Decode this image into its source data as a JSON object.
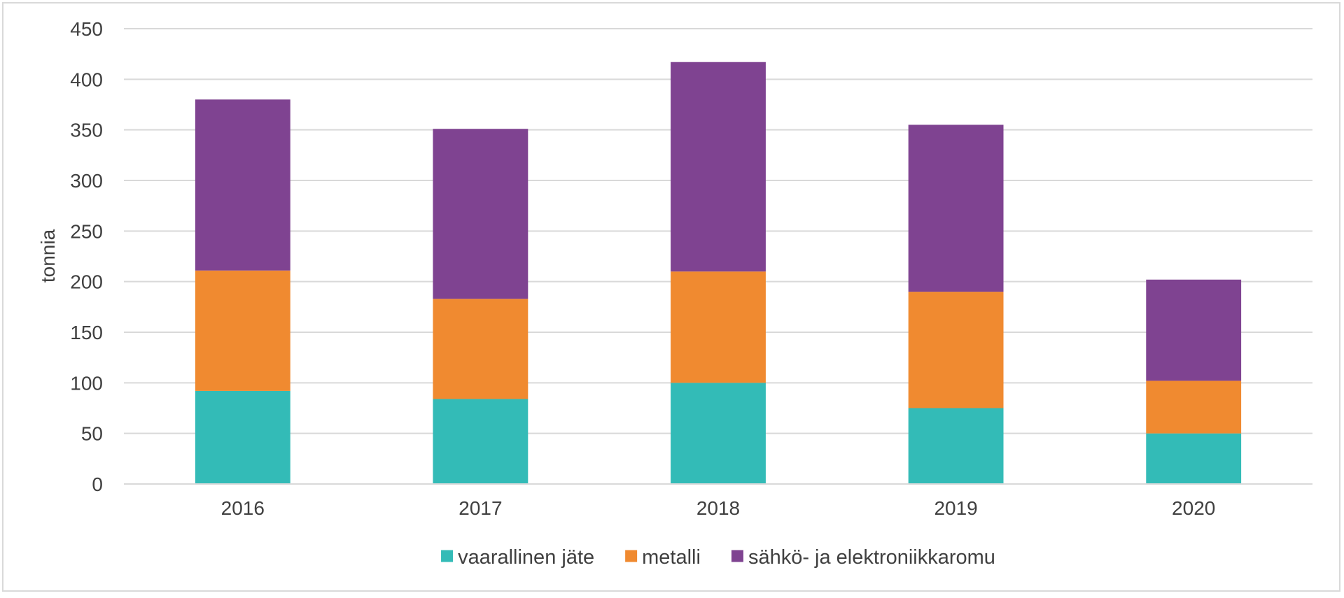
{
  "chart_data": {
    "type": "bar",
    "stacked": true,
    "title": "",
    "xlabel": "",
    "ylabel": "tonnia",
    "ylim": [
      0,
      450
    ],
    "ytick_step": 50,
    "grid": true,
    "legend_position": "bottom",
    "categories": [
      "2016",
      "2017",
      "2018",
      "2019",
      "2020"
    ],
    "series": [
      {
        "name": "vaarallinen jäte",
        "color": "#33bbb7",
        "values": [
          92,
          84,
          100,
          75,
          50
        ]
      },
      {
        "name": "metalli",
        "color": "#f08a30",
        "values": [
          119,
          99,
          110,
          115,
          52
        ]
      },
      {
        "name": "sähkö- ja elektroniikkaromu",
        "color": "#7f4391",
        "values": [
          169,
          168,
          207,
          165,
          100
        ]
      }
    ]
  }
}
